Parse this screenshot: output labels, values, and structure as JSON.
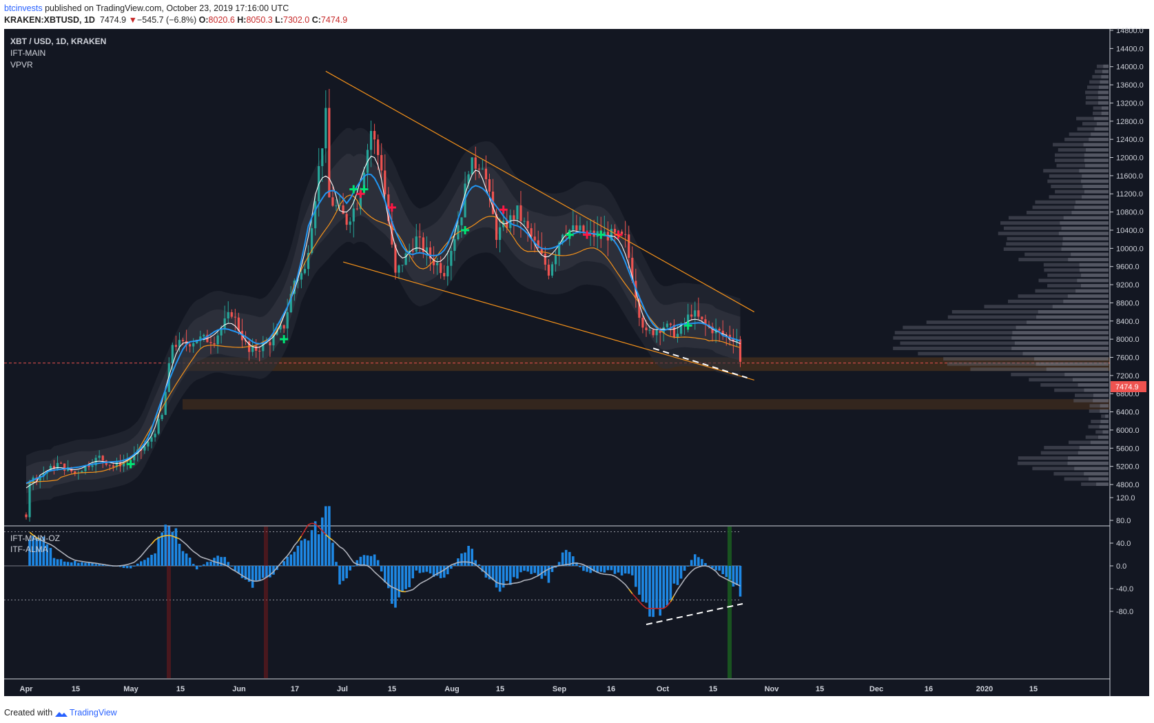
{
  "header": {
    "author": "btcinvests",
    "published": "published on TradingView.com, October 23, 2019 17:16:00 UTC",
    "symbol": "KRAKEN:XBTUSD, 1D",
    "last": "7474.9",
    "change_arrow": "▼",
    "change": "−545.7 (−6.8%)",
    "o_label": "O:",
    "o": "8020.6",
    "h_label": "H:",
    "h": "8050.3",
    "l_label": "L:",
    "l": "7302.0",
    "c_label": "C:",
    "c": "7474.9"
  },
  "legend": {
    "title": "XBT / USD, 1D, KRAKEN",
    "ind1": "IFT-MAIN",
    "ind2": "VPVR",
    "sub1": "IFT-MAIN-OZ",
    "sub2": "ITF-ALMA"
  },
  "price_tag": "7474.9",
  "footer": {
    "created": "Created with",
    "brand": "TradingView"
  },
  "colors": {
    "background": "#131722",
    "up": "#26a69a",
    "down": "#ef5350",
    "orange": "#f7931a",
    "blue": "#2196f3",
    "hist": "#1e88e5",
    "zone": "#5d3a1a"
  },
  "chart_data": [
    {
      "type": "candlestick",
      "title": "XBT / USD, 1D, KRAKEN",
      "y_ticks": [
        "4800.0",
        "5200.0",
        "5600.0",
        "6000.0",
        "6400.0",
        "6800.0",
        "7200.0",
        "7600.0",
        "8000.0",
        "8400.0",
        "8800.0",
        "9200.0",
        "9600.0",
        "10000.0",
        "10400.0",
        "10800.0",
        "11200.0",
        "11600.0",
        "12000.0",
        "12400.0",
        "12800.0",
        "13200.0",
        "13600.0",
        "14000.0",
        "14400.0",
        "14800.0"
      ],
      "x_ticks": [
        "Apr",
        "15",
        "May",
        "15",
        "Jun",
        "17",
        "Jul",
        "15",
        "Aug",
        "15",
        "Sep",
        "16",
        "Oct",
        "15",
        "Nov",
        "15",
        "Dec",
        "16",
        "2020",
        "15"
      ],
      "ylim": [
        4650,
        14850
      ],
      "close_series": [
        [
          "2019-04-01",
          4140
        ],
        [
          "2019-04-02",
          4880
        ],
        [
          "2019-04-05",
          5000
        ],
        [
          "2019-04-10",
          5250
        ],
        [
          "2019-04-15",
          5050
        ],
        [
          "2019-04-22",
          5400
        ],
        [
          "2019-04-26",
          5200
        ],
        [
          "2019-05-01",
          5350
        ],
        [
          "2019-05-06",
          5700
        ],
        [
          "2019-05-10",
          6300
        ],
        [
          "2019-05-13",
          7900
        ],
        [
          "2019-05-16",
          7880
        ],
        [
          "2019-05-20",
          8000
        ],
        [
          "2019-05-25",
          8000
        ],
        [
          "2019-05-30",
          8600
        ],
        [
          "2019-06-04",
          7700
        ],
        [
          "2019-06-10",
          7950
        ],
        [
          "2019-06-14",
          8300
        ],
        [
          "2019-06-17",
          9300
        ],
        [
          "2019-06-20",
          9500
        ],
        [
          "2019-06-22",
          10600
        ],
        [
          "2019-06-26",
          12900
        ],
        [
          "2019-06-27",
          11100
        ],
        [
          "2019-06-30",
          10800
        ],
        [
          "2019-07-02",
          10600
        ],
        [
          "2019-07-05",
          11000
        ],
        [
          "2019-07-09",
          12600
        ],
        [
          "2019-07-12",
          11800
        ],
        [
          "2019-07-16",
          9400
        ],
        [
          "2019-07-18",
          9700
        ],
        [
          "2019-07-22",
          10200
        ],
        [
          "2019-07-26",
          9800
        ],
        [
          "2019-07-30",
          9500
        ],
        [
          "2019-08-04",
          10800
        ],
        [
          "2019-08-06",
          11800
        ],
        [
          "2019-08-10",
          11900
        ],
        [
          "2019-08-14",
          10300
        ],
        [
          "2019-08-20",
          10800
        ],
        [
          "2019-08-25",
          10100
        ],
        [
          "2019-08-29",
          9500
        ],
        [
          "2019-09-02",
          10400
        ],
        [
          "2019-09-06",
          10400
        ],
        [
          "2019-09-10",
          10300
        ],
        [
          "2019-09-15",
          10300
        ],
        [
          "2019-09-20",
          10200
        ],
        [
          "2019-09-24",
          8600
        ],
        [
          "2019-09-26",
          8100
        ],
        [
          "2019-10-01",
          8300
        ],
        [
          "2019-10-05",
          8100
        ],
        [
          "2019-10-09",
          8600
        ],
        [
          "2019-10-13",
          8300
        ],
        [
          "2019-10-18",
          8100
        ],
        [
          "2019-10-22",
          8020
        ],
        [
          "2019-10-23",
          7474.9
        ]
      ],
      "last_close": 7474.9,
      "annotations": {
        "falling_wedge_upper": [
          [
            "2019-06-26",
            13900
          ],
          [
            "2019-10-27",
            8600
          ]
        ],
        "falling_wedge_lower": [
          [
            "2019-07-01",
            9700
          ],
          [
            "2019-10-27",
            7100
          ]
        ],
        "dashed_support": [
          [
            "2019-09-28",
            7800
          ],
          [
            "2019-10-25",
            7150
          ]
        ],
        "zone1": [
          7300,
          7600
        ],
        "zone2": [
          6450,
          6680
        ]
      },
      "volume_profile": "VPVR on right side, peak near 8000"
    },
    {
      "type": "bar",
      "title": "IFT-MAIN-OZ",
      "y_ticks": [
        "-80.0",
        "-40.0",
        "0.0",
        "40.0",
        "80.0",
        "120.0"
      ],
      "ylim": [
        -120,
        120
      ],
      "levels": [
        60,
        -60
      ],
      "histogram_sample": [
        [
          "2019-04-02",
          55
        ],
        [
          "2019-04-05",
          50
        ],
        [
          "2019-04-10",
          10
        ],
        [
          "2019-04-20",
          5
        ],
        [
          "2019-05-01",
          -5
        ],
        [
          "2019-05-08",
          25
        ],
        [
          "2019-05-11",
          95
        ],
        [
          "2019-05-15",
          40
        ],
        [
          "2019-05-20",
          -5
        ],
        [
          "2019-05-27",
          20
        ],
        [
          "2019-06-04",
          -35
        ],
        [
          "2019-06-10",
          -20
        ],
        [
          "2019-06-17",
          30
        ],
        [
          "2019-06-24",
          70
        ],
        [
          "2019-06-27",
          100
        ],
        [
          "2019-06-30",
          -40
        ],
        [
          "2019-07-05",
          10
        ],
        [
          "2019-07-10",
          25
        ],
        [
          "2019-07-16",
          -75
        ],
        [
          "2019-07-22",
          -10
        ],
        [
          "2019-07-30",
          -20
        ],
        [
          "2019-08-06",
          35
        ],
        [
          "2019-08-12",
          -30
        ],
        [
          "2019-08-15",
          -40
        ],
        [
          "2019-08-22",
          -10
        ],
        [
          "2019-08-29",
          -25
        ],
        [
          "2019-09-03",
          30
        ],
        [
          "2019-09-08",
          -10
        ],
        [
          "2019-09-16",
          -10
        ],
        [
          "2019-09-22",
          -20
        ],
        [
          "2019-09-26",
          -70
        ],
        [
          "2019-09-29",
          -85
        ],
        [
          "2019-10-05",
          -30
        ],
        [
          "2019-10-10",
          20
        ],
        [
          "2019-10-15",
          -5
        ],
        [
          "2019-10-20",
          -20
        ],
        [
          "2019-10-23",
          -55
        ]
      ]
    }
  ]
}
